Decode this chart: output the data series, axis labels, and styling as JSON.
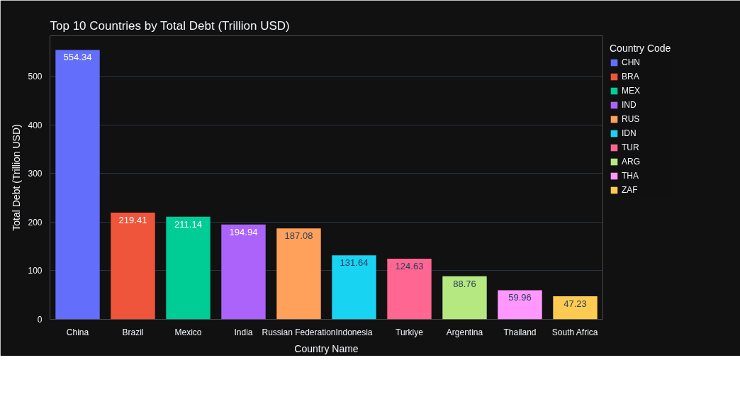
{
  "chart_data": {
    "type": "bar",
    "title": "Top 10 Countries by Total Debt (Trillion USD)",
    "xlabel": "Country Name",
    "ylabel": "Total Debt (Trillion USD)",
    "legend_title": "Country Code",
    "categories": [
      "China",
      "Brazil",
      "Mexico",
      "India",
      "Russian Federation",
      "Indonesia",
      "Turkiye",
      "Argentina",
      "Thailand",
      "South Africa"
    ],
    "series": [
      {
        "name": "CHN",
        "color": "#636efa",
        "values": [
          554.34,
          null,
          null,
          null,
          null,
          null,
          null,
          null,
          null,
          null
        ]
      },
      {
        "name": "BRA",
        "color": "#ef553b",
        "values": [
          null,
          219.41,
          null,
          null,
          null,
          null,
          null,
          null,
          null,
          null
        ]
      },
      {
        "name": "MEX",
        "color": "#00cc96",
        "values": [
          null,
          null,
          211.14,
          null,
          null,
          null,
          null,
          null,
          null,
          null
        ]
      },
      {
        "name": "IND",
        "color": "#ab63fa",
        "values": [
          null,
          null,
          null,
          194.94,
          null,
          null,
          null,
          null,
          null,
          null
        ]
      },
      {
        "name": "RUS",
        "color": "#ffa15a",
        "values": [
          null,
          null,
          null,
          null,
          187.08,
          null,
          null,
          null,
          null,
          null
        ]
      },
      {
        "name": "IDN",
        "color": "#19d3f3",
        "values": [
          null,
          null,
          null,
          null,
          null,
          131.64,
          null,
          null,
          null,
          null
        ]
      },
      {
        "name": "TUR",
        "color": "#ff6692",
        "values": [
          null,
          null,
          null,
          null,
          null,
          null,
          124.63,
          null,
          null,
          null
        ]
      },
      {
        "name": "ARG",
        "color": "#b6e880",
        "values": [
          null,
          null,
          null,
          null,
          null,
          null,
          null,
          88.76,
          null,
          null
        ]
      },
      {
        "name": "THA",
        "color": "#ff97ff",
        "values": [
          null,
          null,
          null,
          null,
          null,
          null,
          null,
          null,
          59.96,
          null
        ]
      },
      {
        "name": "ZAF",
        "color": "#fecb52",
        "values": [
          null,
          null,
          null,
          null,
          null,
          null,
          null,
          null,
          null,
          47.23
        ]
      }
    ],
    "ylim": [
      0,
      583.5
    ],
    "yticks": [
      0,
      100,
      200,
      300,
      400,
      500
    ],
    "grid": "y",
    "legend": "right",
    "data_labels": true
  }
}
